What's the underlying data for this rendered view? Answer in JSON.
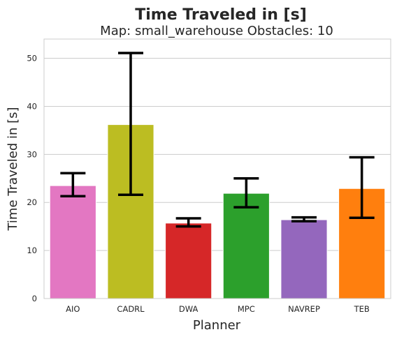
{
  "chart_data": {
    "type": "bar",
    "title": "Time Traveled in [s]",
    "subtitle": "Map: small_warehouse Obstacles: 10",
    "xlabel": "Planner",
    "ylabel": "Time Traveled in [s]",
    "categories": [
      "AIO",
      "CADRL",
      "DWA",
      "MPC",
      "NAVREP",
      "TEB"
    ],
    "values": [
      23.5,
      36.2,
      15.7,
      21.9,
      16.4,
      22.9
    ],
    "error_low": [
      21.3,
      21.6,
      15.0,
      19.0,
      16.1,
      16.8
    ],
    "error_high": [
      26.1,
      51.1,
      16.7,
      25.0,
      16.9,
      29.4
    ],
    "colors": [
      "#e377c2",
      "#bcbd22",
      "#d62728",
      "#2ca02c",
      "#9467bd",
      "#ff7f0e"
    ],
    "error_color": "#000000",
    "ylim": [
      0,
      54
    ],
    "yticks": [
      0,
      10,
      20,
      30,
      40,
      50
    ],
    "grid": true,
    "grid_axis": "y"
  }
}
